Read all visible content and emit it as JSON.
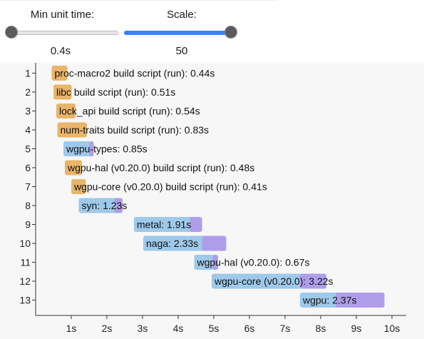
{
  "controls": {
    "min_unit_time": {
      "label": "Min unit time:",
      "value_text": "0.4s",
      "fraction": 0.0
    },
    "scale": {
      "label": "Scale:",
      "value_text": "50",
      "fraction": 1.0
    }
  },
  "colors": {
    "build_script": "#e9b56a",
    "codegen": "#9ec9ea",
    "finish": "#ae9eea",
    "axis": "#333333"
  },
  "chart_data": {
    "type": "bar",
    "title": "",
    "xlabel": "",
    "ylabel": "",
    "xlim": [
      0,
      10.3
    ],
    "x_ticks": [
      "1s",
      "2s",
      "3s",
      "4s",
      "5s",
      "6s",
      "7s",
      "8s",
      "9s",
      "10s"
    ],
    "units": [
      {
        "row": "1",
        "label": "proc-macro2 build script (run): 0.44s",
        "start": 0.45,
        "duration": 0.44,
        "finish_start": null,
        "kind": "build_script"
      },
      {
        "row": "2",
        "label": "libc build script (run): 0.51s",
        "start": 0.5,
        "duration": 0.51,
        "finish_start": null,
        "kind": "build_script"
      },
      {
        "row": "3",
        "label": "lock_api build script (run): 0.54s",
        "start": 0.58,
        "duration": 0.54,
        "finish_start": null,
        "kind": "build_script"
      },
      {
        "row": "4",
        "label": "num-traits build script (run): 0.83s",
        "start": 0.61,
        "duration": 0.83,
        "finish_start": null,
        "kind": "build_script"
      },
      {
        "row": "5",
        "label": "wgpu-types: 0.85s",
        "start": 0.78,
        "duration": 0.85,
        "finish_start": 1.51,
        "kind": "library"
      },
      {
        "row": "6",
        "label": "wgpu-hal (v0.20.0) build script (run): 0.48s",
        "start": 0.82,
        "duration": 0.48,
        "finish_start": null,
        "kind": "build_script"
      },
      {
        "row": "7",
        "label": "wgpu-core (v0.20.0) build script (run): 0.41s",
        "start": 1.0,
        "duration": 0.41,
        "finish_start": null,
        "kind": "build_script"
      },
      {
        "row": "8",
        "label": "syn: 1.23s",
        "start": 1.21,
        "duration": 1.23,
        "finish_start": 2.21,
        "kind": "library"
      },
      {
        "row": "9",
        "label": "metal: 1.91s",
        "start": 2.76,
        "duration": 1.91,
        "finish_start": 4.33,
        "kind": "library"
      },
      {
        "row": "10",
        "label": "naga: 2.33s",
        "start": 3.02,
        "duration": 2.33,
        "finish_start": 4.67,
        "kind": "library"
      },
      {
        "row": "11",
        "label": "wgpu-hal (v0.20.0): 0.67s",
        "start": 4.45,
        "duration": 0.67,
        "finish_start": 4.97,
        "kind": "library"
      },
      {
        "row": "12",
        "label": "wgpu-core (v0.20.0): 3.22s",
        "start": 4.94,
        "duration": 3.22,
        "finish_start": 7.42,
        "kind": "library"
      },
      {
        "row": "13",
        "label": "wgpu: 2.37s",
        "start": 7.42,
        "duration": 2.37,
        "finish_start": 8.42,
        "kind": "library"
      }
    ]
  }
}
